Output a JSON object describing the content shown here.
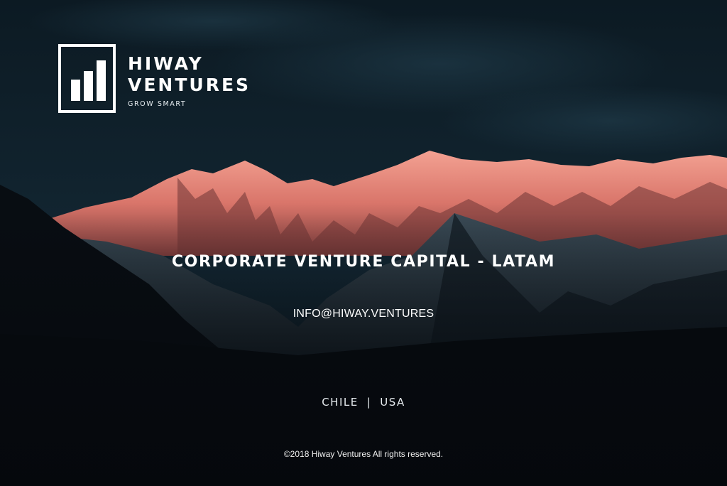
{
  "brand": {
    "name_line1": "HIWAY",
    "name_line2": "VENTURES",
    "tagline": "GROW SMART"
  },
  "hero": {
    "headline": "CORPORATE VENTURE CAPITAL - LATAM",
    "email": "INFO@HIWAY.VENTURES"
  },
  "locations": {
    "items": [
      "CHILE",
      "USA"
    ],
    "separator": "|"
  },
  "footer": {
    "copyright": "©2018 Hiway Ventures All rights reserved."
  },
  "colors": {
    "text": "#ffffff",
    "sky": "#0d1b24",
    "alpenglow": "#e07a6c",
    "shadow": "#05080c"
  }
}
